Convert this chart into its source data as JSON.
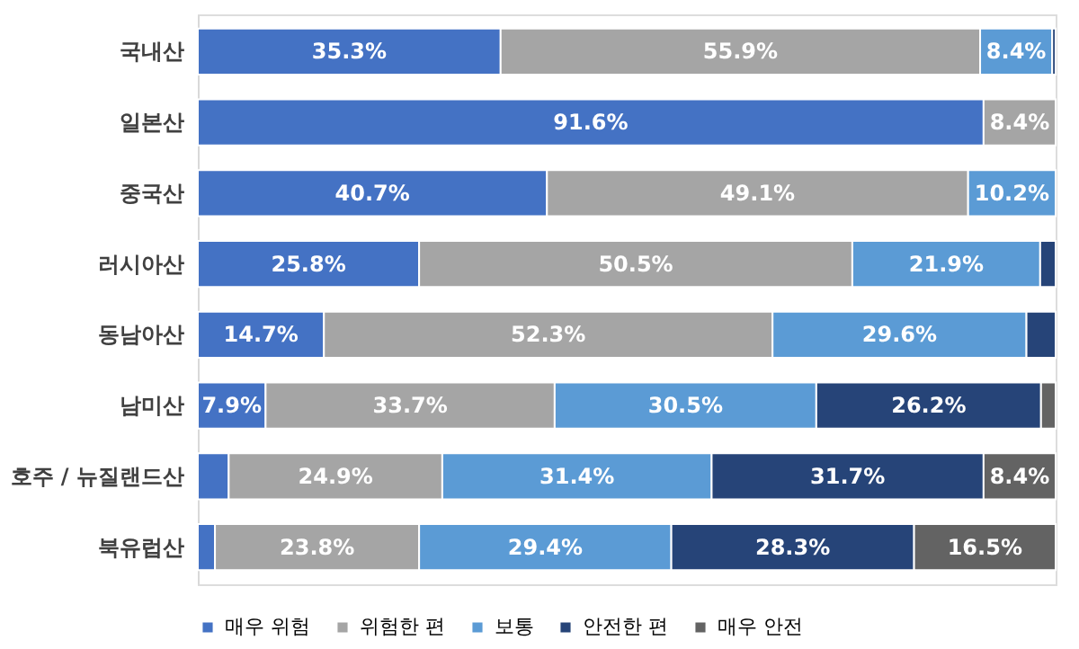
{
  "chart_data": {
    "type": "bar",
    "orientation": "horizontal",
    "stacked": true,
    "categories": [
      "국내산",
      "일본산",
      "중국산",
      "러시아산",
      "동남아산",
      "남미산",
      "호주 / 뉴질랜드산",
      "북유럽산"
    ],
    "series": [
      {
        "name": "매우 위험",
        "color": "#4472c4",
        "values": [
          35.3,
          91.6,
          40.7,
          25.8,
          14.7,
          7.9,
          3.6,
          2.0
        ],
        "value_labels": [
          "35.3%",
          "91.6%",
          "40.7%",
          "25.8%",
          "14.7%",
          "7.9%",
          null,
          null
        ]
      },
      {
        "name": "위험한 편",
        "color": "#a5a5a5",
        "values": [
          55.9,
          8.4,
          49.1,
          50.5,
          52.3,
          33.7,
          24.9,
          23.8
        ],
        "value_labels": [
          "55.9%",
          "8.4%",
          "49.1%",
          "50.5%",
          "52.3%",
          "33.7%",
          "24.9%",
          "23.8%"
        ]
      },
      {
        "name": "보통",
        "color": "#5b9bd5",
        "values": [
          8.4,
          null,
          10.2,
          21.9,
          29.6,
          30.5,
          31.4,
          29.4
        ],
        "value_labels": [
          "8.4%",
          null,
          "10.2%",
          "21.9%",
          "29.6%",
          "30.5%",
          "31.4%",
          "29.4%"
        ]
      },
      {
        "name": "안전한 편",
        "color": "#264478",
        "values": [
          0.4,
          null,
          null,
          1.8,
          3.4,
          26.2,
          31.7,
          28.3
        ],
        "value_labels": [
          null,
          null,
          null,
          null,
          null,
          "26.2%",
          "31.7%",
          "28.3%"
        ]
      },
      {
        "name": "매우 안전",
        "color": "#636363",
        "values": [
          null,
          null,
          null,
          null,
          null,
          1.7,
          8.4,
          16.5
        ],
        "value_labels": [
          null,
          null,
          null,
          null,
          null,
          null,
          "8.4%",
          "16.5%"
        ]
      }
    ],
    "xlim": [
      0,
      100
    ],
    "tick_labels": "y",
    "legend": "bottom"
  }
}
